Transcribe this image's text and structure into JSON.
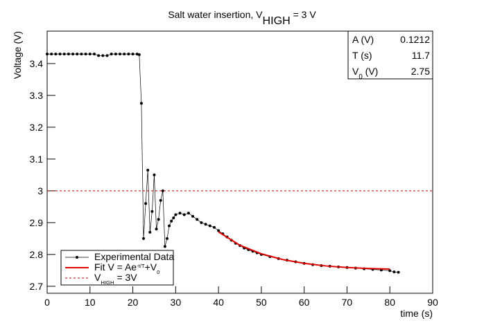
{
  "chart_data": {
    "type": "line",
    "title": [
      {
        "text": "Salt water insertion, V"
      },
      {
        "sub": "HIGH"
      },
      {
        "text": " = 3 V"
      }
    ],
    "x_label": "time (s)",
    "y_label": "Voltage (V)",
    "xlim": [
      0,
      90
    ],
    "xticks": [
      0,
      10,
      20,
      30,
      40,
      50,
      60,
      70,
      80,
      90
    ],
    "ylim": [
      2.678,
      3.502
    ],
    "yticks": [
      2.7,
      2.8,
      2.9,
      3,
      3.1,
      3.2,
      3.3,
      3.4
    ],
    "series": [
      {
        "name": [
          {
            "text": "Experimental Data"
          }
        ],
        "color": "#000000",
        "style": "markers",
        "x": [
          0,
          1,
          2,
          3,
          4,
          5,
          6,
          7,
          8,
          9,
          10,
          11,
          12,
          13,
          14,
          15,
          16,
          17,
          18,
          19,
          20,
          21,
          21.5,
          22,
          22.5,
          23,
          23.5,
          24,
          24.5,
          25,
          25.5,
          26,
          26.5,
          27,
          27.5,
          28,
          28.5,
          29,
          29.5,
          30,
          31,
          32,
          33,
          34,
          35,
          36,
          37,
          38,
          39,
          40,
          41,
          42,
          43,
          44,
          45,
          46,
          47,
          48,
          49,
          50,
          52,
          54,
          56,
          58,
          60,
          62,
          64,
          66,
          68,
          70,
          72,
          74,
          76,
          78,
          80,
          81,
          82
        ],
        "values": [
          3.43,
          3.43,
          3.43,
          3.43,
          3.43,
          3.43,
          3.43,
          3.43,
          3.43,
          3.43,
          3.43,
          3.43,
          3.425,
          3.425,
          3.425,
          3.43,
          3.43,
          3.43,
          3.43,
          3.43,
          3.43,
          3.43,
          3.428,
          3.275,
          2.85,
          2.96,
          3.065,
          2.87,
          2.935,
          3.05,
          2.88,
          2.91,
          2.97,
          3.0,
          2.825,
          2.85,
          2.89,
          2.905,
          2.915,
          2.925,
          2.93,
          2.925,
          2.93,
          2.92,
          2.91,
          2.9,
          2.895,
          2.89,
          2.885,
          2.875,
          2.865,
          2.855,
          2.845,
          2.835,
          2.828,
          2.82,
          2.815,
          2.81,
          2.805,
          2.8,
          2.793,
          2.787,
          2.782,
          2.777,
          2.772,
          2.768,
          2.765,
          2.763,
          2.761,
          2.759,
          2.757,
          2.755,
          2.753,
          2.751,
          2.749,
          2.745,
          2.744
        ]
      },
      {
        "name": [
          {
            "text": "Fit V = Ae"
          },
          {
            "sup": "-t/T"
          },
          {
            "text": "+V"
          },
          {
            "sub": "0"
          }
        ],
        "color": "#e00000",
        "style": "solid",
        "x": [
          40,
          45,
          50,
          55,
          60,
          65,
          70,
          75,
          80
        ],
        "values": [
          2.871,
          2.829,
          2.802,
          2.784,
          2.772,
          2.764,
          2.759,
          2.756,
          2.754
        ]
      },
      {
        "name": [
          {
            "text": "V"
          },
          {
            "sub": "HIGH"
          },
          {
            "text": " = 3V"
          }
        ],
        "color": "#c00000",
        "style": "dashed",
        "x": [
          0,
          90
        ],
        "values": [
          3,
          3
        ]
      }
    ],
    "stats": [
      {
        "label": [
          {
            "text": "A (V)"
          }
        ],
        "value": 0.1212
      },
      {
        "label": [
          {
            "text": "T (s)"
          }
        ],
        "value": 11.7
      },
      {
        "label": [
          {
            "text": "V"
          },
          {
            "sub": "0"
          },
          {
            "text": " (V)"
          }
        ],
        "value": 2.75
      }
    ]
  }
}
